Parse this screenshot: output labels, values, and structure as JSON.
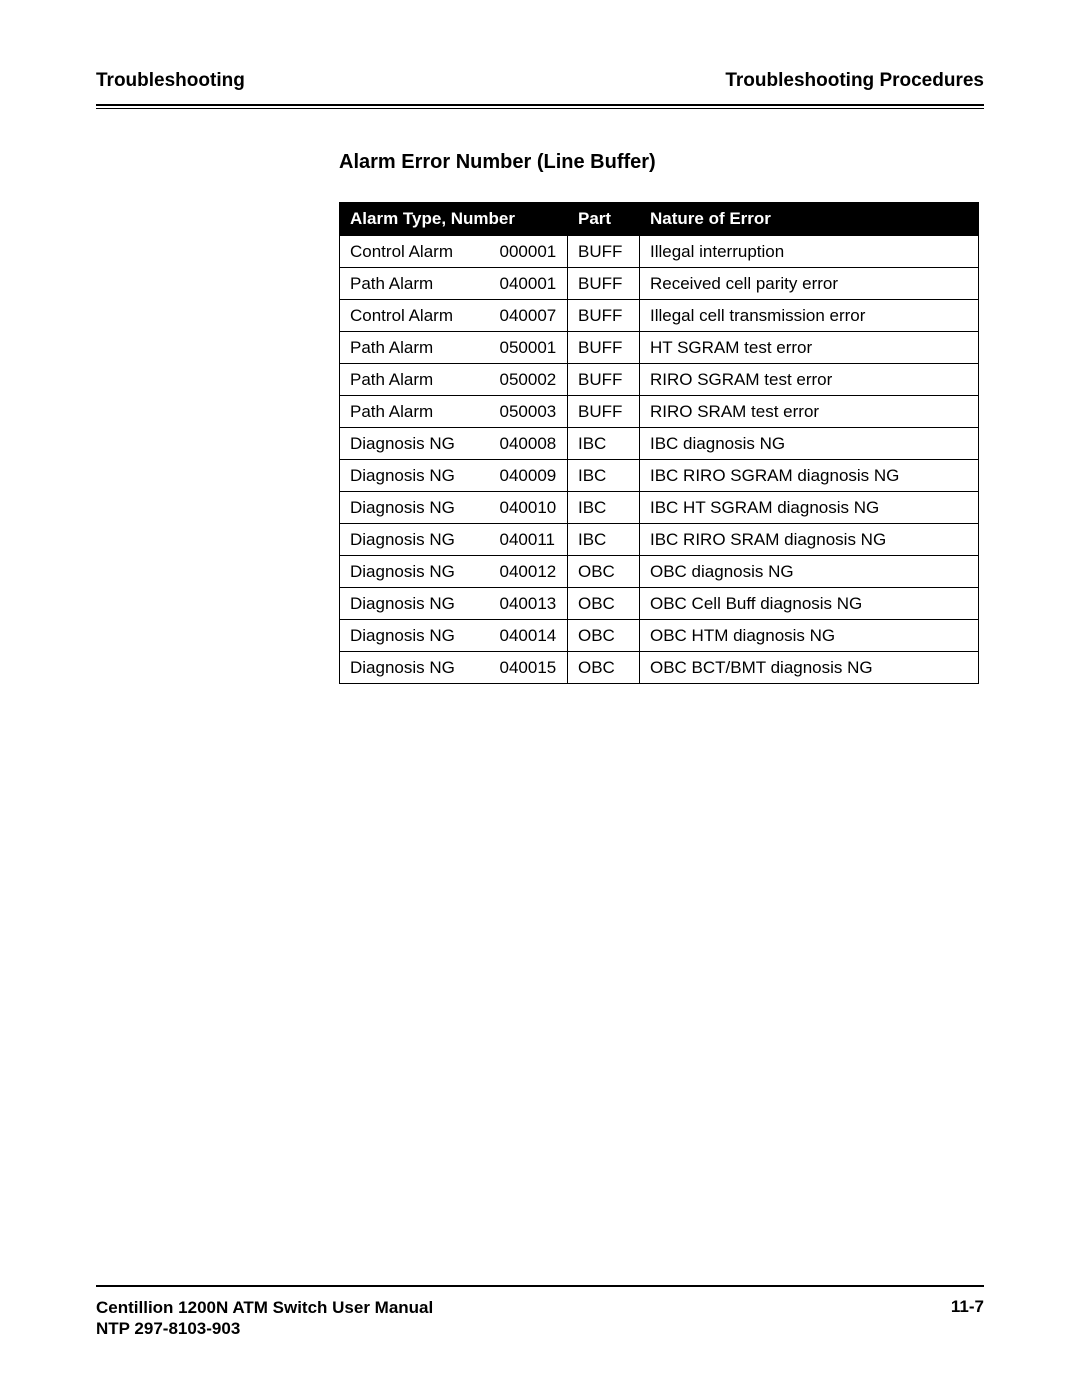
{
  "header": {
    "left": "Troubleshooting",
    "right": "Troubleshooting Procedures"
  },
  "section_title": "Alarm Error Number (Line Buffer)",
  "table": {
    "columns": {
      "type_number": "Alarm Type, Number",
      "part": "Part",
      "error": "Nature of Error"
    },
    "rows": [
      {
        "type": "Control Alarm",
        "number": "000001",
        "part": "BUFF",
        "error": "Illegal interruption"
      },
      {
        "type": "Path Alarm",
        "number": "040001",
        "part": "BUFF",
        "error": "Received cell parity error"
      },
      {
        "type": "Control Alarm",
        "number": "040007",
        "part": "BUFF",
        "error": "Illegal cell transmission error"
      },
      {
        "type": "Path Alarm",
        "number": "050001",
        "part": "BUFF",
        "error": "HT SGRAM test error"
      },
      {
        "type": "Path Alarm",
        "number": "050002",
        "part": "BUFF",
        "error": "RIRO SGRAM test error"
      },
      {
        "type": "Path Alarm",
        "number": "050003",
        "part": "BUFF",
        "error": "RIRO SRAM test error"
      },
      {
        "type": "Diagnosis NG",
        "number": "040008",
        "part": "IBC",
        "error": "IBC diagnosis NG"
      },
      {
        "type": "Diagnosis NG",
        "number": "040009",
        "part": "IBC",
        "error": "IBC RIRO SGRAM diagnosis NG"
      },
      {
        "type": "Diagnosis NG",
        "number": "040010",
        "part": "IBC",
        "error": "IBC HT SGRAM diagnosis NG"
      },
      {
        "type": "Diagnosis NG",
        "number": "040011",
        "part": "IBC",
        "error": "IBC RIRO SRAM diagnosis NG"
      },
      {
        "type": "Diagnosis NG",
        "number": "040012",
        "part": "OBC",
        "error": "OBC diagnosis NG"
      },
      {
        "type": "Diagnosis NG",
        "number": "040013",
        "part": "OBC",
        "error": "OBC Cell Buff diagnosis NG"
      },
      {
        "type": "Diagnosis NG",
        "number": "040014",
        "part": "OBC",
        "error": "OBC HTM diagnosis NG"
      },
      {
        "type": "Diagnosis NG",
        "number": "040015",
        "part": "OBC",
        "error": "OBC BCT/BMT diagnosis NG"
      }
    ]
  },
  "footer": {
    "manual": "Centillion 1200N ATM Switch User Manual",
    "ntp": "NTP 297-8103-903",
    "page": "11-7"
  }
}
